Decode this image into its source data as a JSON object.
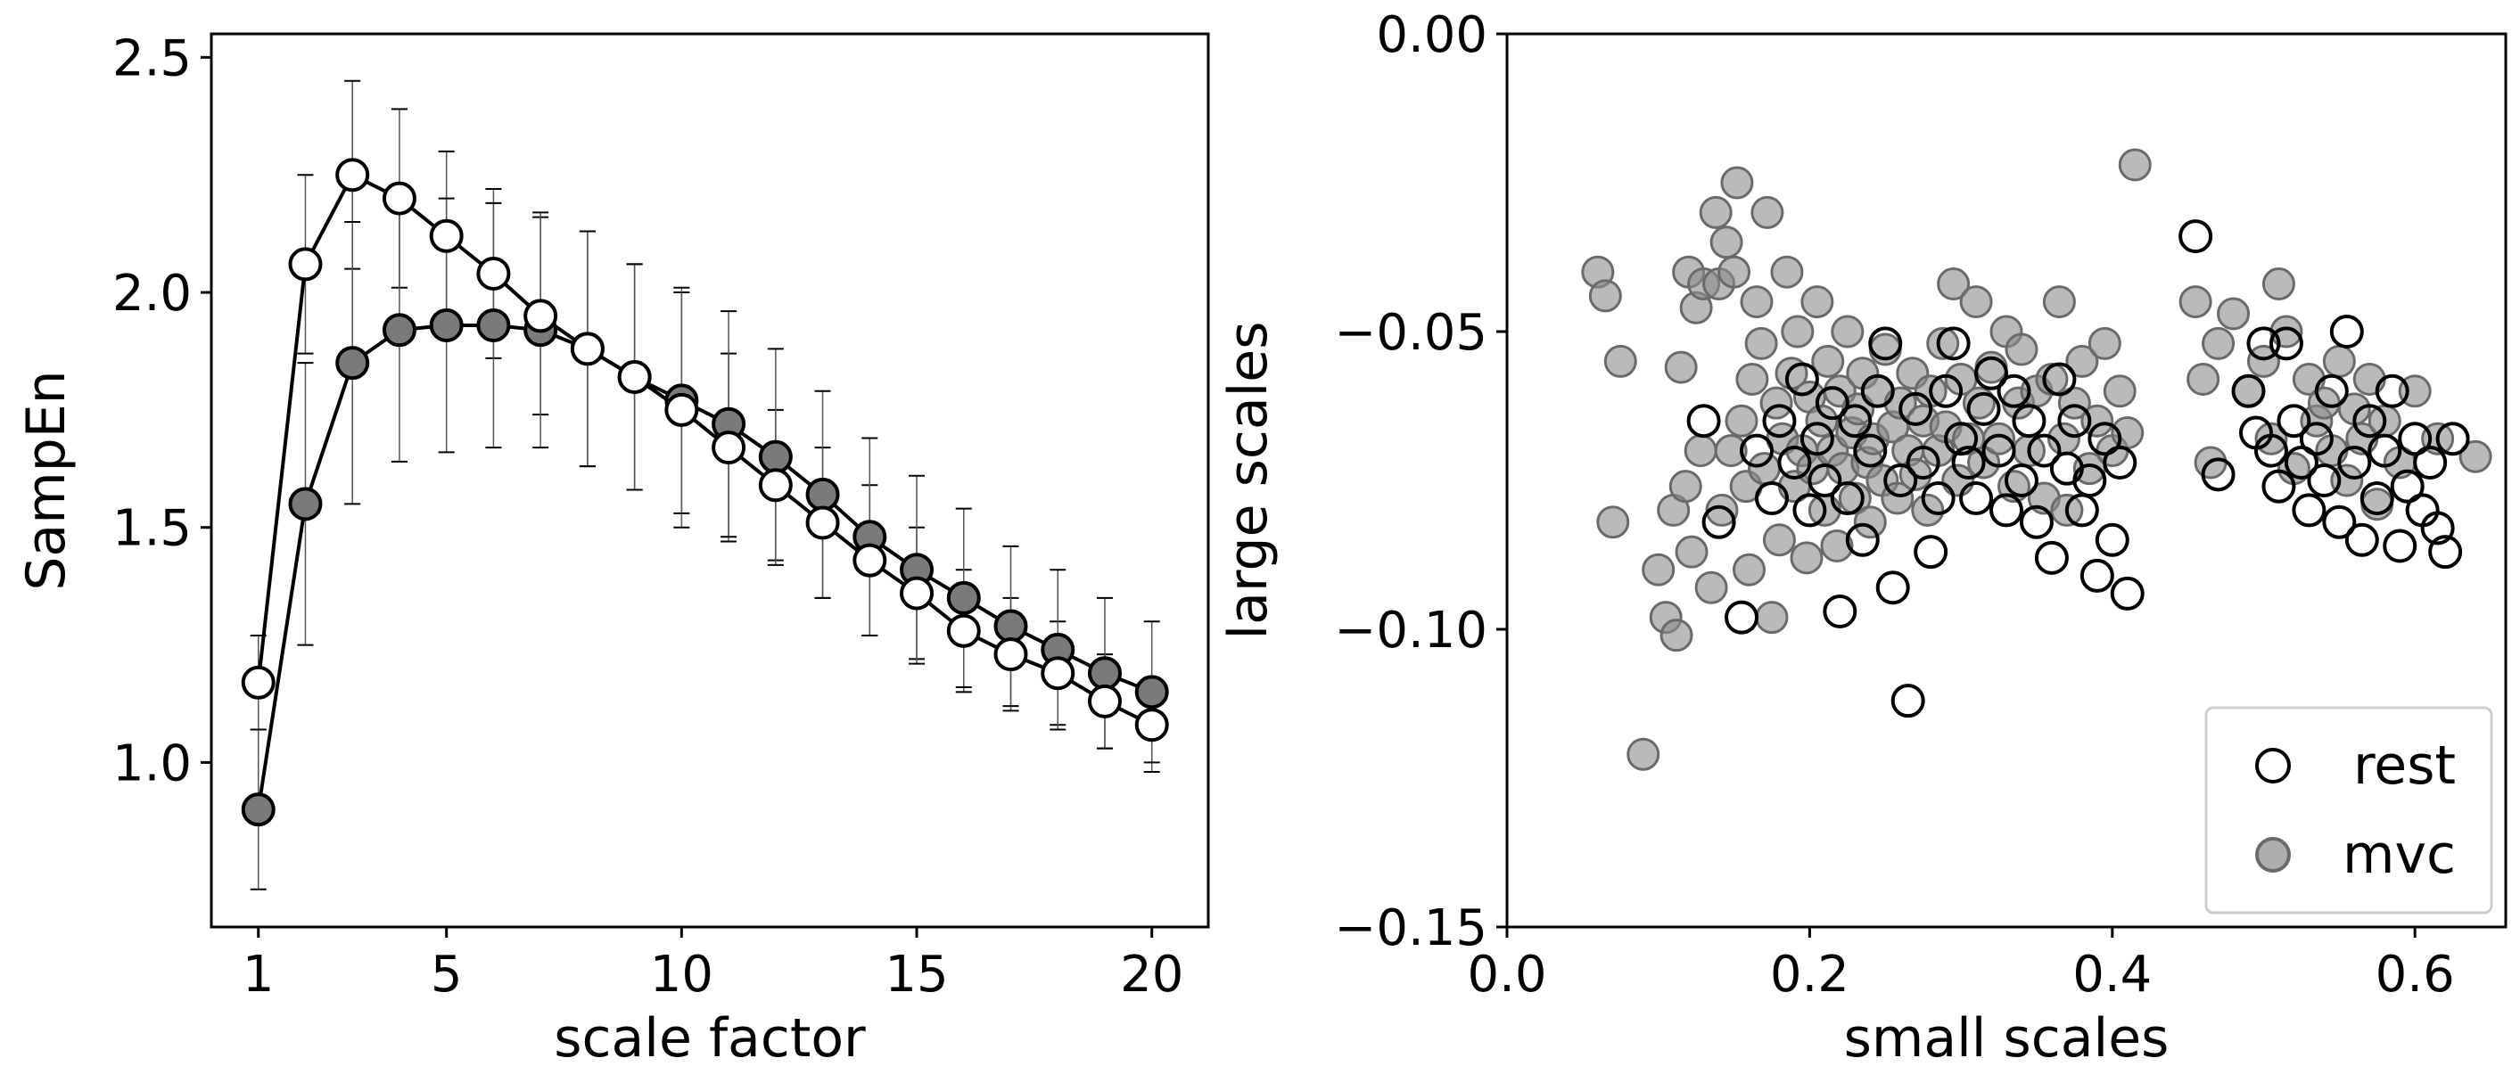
{
  "chart_data": [
    {
      "type": "line",
      "title": "",
      "xlabel": "scale factor",
      "ylabel": "SampEn",
      "xlim": [
        0,
        21.2
      ],
      "ylim": [
        0.65,
        2.55
      ],
      "xticks": [
        1,
        5,
        10,
        15,
        20
      ],
      "xtick_labels": [
        "1",
        "5",
        "10",
        "15",
        "20"
      ],
      "yticks": [
        1.0,
        1.5,
        2.0,
        2.5
      ],
      "ytick_labels": [
        "1.0",
        "1.5",
        "2.0",
        "2.5"
      ],
      "grid": false,
      "x": [
        1,
        2,
        3,
        4,
        5,
        6,
        7,
        8,
        9,
        10,
        11,
        12,
        13,
        14,
        15,
        16,
        17,
        18,
        19,
        20
      ],
      "series": [
        {
          "name": "rest",
          "marker_color": "#ffffff",
          "values": [
            1.17,
            2.06,
            2.25,
            2.2,
            2.12,
            2.04,
            1.95,
            1.88,
            1.82,
            1.75,
            1.67,
            1.59,
            1.51,
            1.43,
            1.36,
            1.28,
            1.23,
            1.19,
            1.13,
            1.08
          ],
          "error": [
            0.1,
            0.19,
            0.2,
            0.19,
            0.18,
            0.18,
            0.21,
            0.25,
            0.24,
            0.25,
            0.2,
            0.16,
            0.16,
            0.16,
            0.14,
            0.13,
            0.12,
            0.11,
            0.1,
            0.1
          ]
        },
        {
          "name": "mvc",
          "marker_color": "#7a7a7a",
          "values": [
            0.9,
            1.55,
            1.85,
            1.92,
            1.93,
            1.93,
            1.92,
            1.88,
            1.82,
            1.77,
            1.72,
            1.65,
            1.57,
            1.48,
            1.41,
            1.35,
            1.29,
            1.24,
            1.19,
            1.15
          ],
          "error": [
            0.17,
            0.3,
            0.3,
            0.28,
            0.27,
            0.26,
            0.25,
            0.25,
            0.24,
            0.24,
            0.24,
            0.23,
            0.22,
            0.21,
            0.2,
            0.19,
            0.17,
            0.17,
            0.16,
            0.15
          ]
        }
      ]
    },
    {
      "type": "scatter",
      "title": "",
      "xlabel": "small scales",
      "ylabel": "large scales",
      "xlim": [
        0.0,
        0.66
      ],
      "ylim": [
        -0.15,
        0.0
      ],
      "xticks": [
        0.0,
        0.2,
        0.4,
        0.6
      ],
      "xtick_labels": [
        "0.0",
        "0.2",
        "0.4",
        "0.6"
      ],
      "yticks": [
        -0.15,
        -0.1,
        -0.05,
        0.0
      ],
      "ytick_labels": [
        "−0.15",
        "−0.10",
        "−0.05",
        "0.00"
      ],
      "grid": false,
      "legend": {
        "placement": "lower-right",
        "entries": [
          {
            "label": "rest",
            "color": "#ffffff"
          },
          {
            "label": "mvc",
            "color": "#8c8c8c"
          }
        ]
      },
      "series": [
        {
          "name": "mvc",
          "marker_color": "#8c8c8c",
          "points": [
            [
              0.06,
              -0.04
            ],
            [
              0.065,
              -0.044
            ],
            [
              0.07,
              -0.082
            ],
            [
              0.075,
              -0.055
            ],
            [
              0.09,
              -0.121
            ],
            [
              0.1,
              -0.09
            ],
            [
              0.105,
              -0.098
            ],
            [
              0.11,
              -0.08
            ],
            [
              0.112,
              -0.101
            ],
            [
              0.115,
              -0.056
            ],
            [
              0.118,
              -0.076
            ],
            [
              0.12,
              -0.04
            ],
            [
              0.122,
              -0.087
            ],
            [
              0.125,
              -0.046
            ],
            [
              0.128,
              -0.07
            ],
            [
              0.13,
              -0.042
            ],
            [
              0.135,
              -0.093
            ],
            [
              0.138,
              -0.03
            ],
            [
              0.14,
              -0.042
            ],
            [
              0.142,
              -0.08
            ],
            [
              0.145,
              -0.035
            ],
            [
              0.148,
              -0.07
            ],
            [
              0.15,
              -0.04
            ],
            [
              0.152,
              -0.025
            ],
            [
              0.155,
              -0.065
            ],
            [
              0.158,
              -0.076
            ],
            [
              0.16,
              -0.09
            ],
            [
              0.162,
              -0.058
            ],
            [
              0.165,
              -0.045
            ],
            [
              0.168,
              -0.052
            ],
            [
              0.17,
              -0.073
            ],
            [
              0.172,
              -0.03
            ],
            [
              0.175,
              -0.098
            ],
            [
              0.178,
              -0.062
            ],
            [
              0.18,
              -0.085
            ],
            [
              0.182,
              -0.068
            ],
            [
              0.185,
              -0.04
            ],
            [
              0.188,
              -0.057
            ],
            [
              0.19,
              -0.076
            ],
            [
              0.192,
              -0.05
            ],
            [
              0.195,
              -0.07
            ],
            [
              0.198,
              -0.088
            ],
            [
              0.2,
              -0.061
            ],
            [
              0.202,
              -0.073
            ],
            [
              0.205,
              -0.045
            ],
            [
              0.208,
              -0.065
            ],
            [
              0.21,
              -0.08
            ],
            [
              0.212,
              -0.055
            ],
            [
              0.215,
              -0.07
            ],
            [
              0.218,
              -0.086
            ],
            [
              0.22,
              -0.06
            ],
            [
              0.222,
              -0.073
            ],
            [
              0.225,
              -0.05
            ],
            [
              0.228,
              -0.067
            ],
            [
              0.23,
              -0.078
            ],
            [
              0.232,
              -0.063
            ],
            [
              0.235,
              -0.057
            ],
            [
              0.238,
              -0.072
            ],
            [
              0.24,
              -0.082
            ],
            [
              0.242,
              -0.068
            ],
            [
              0.245,
              -0.06
            ],
            [
              0.248,
              -0.075
            ],
            [
              0.25,
              -0.053
            ],
            [
              0.255,
              -0.066
            ],
            [
              0.258,
              -0.078
            ],
            [
              0.26,
              -0.062
            ],
            [
              0.265,
              -0.07
            ],
            [
              0.268,
              -0.057
            ],
            [
              0.27,
              -0.074
            ],
            [
              0.275,
              -0.065
            ],
            [
              0.278,
              -0.08
            ],
            [
              0.28,
              -0.06
            ],
            [
              0.285,
              -0.07
            ],
            [
              0.288,
              -0.052
            ],
            [
              0.29,
              -0.066
            ],
            [
              0.295,
              -0.042
            ],
            [
              0.298,
              -0.075
            ],
            [
              0.3,
              -0.058
            ],
            [
              0.305,
              -0.068
            ],
            [
              0.31,
              -0.045
            ],
            [
              0.312,
              -0.062
            ],
            [
              0.315,
              -0.072
            ],
            [
              0.32,
              -0.056
            ],
            [
              0.325,
              -0.068
            ],
            [
              0.33,
              -0.05
            ],
            [
              0.335,
              -0.076
            ],
            [
              0.338,
              -0.062
            ],
            [
              0.34,
              -0.053
            ],
            [
              0.345,
              -0.07
            ],
            [
              0.35,
              -0.06
            ],
            [
              0.355,
              -0.078
            ],
            [
              0.36,
              -0.058
            ],
            [
              0.365,
              -0.045
            ],
            [
              0.368,
              -0.068
            ],
            [
              0.37,
              -0.08
            ],
            [
              0.375,
              -0.062
            ],
            [
              0.38,
              -0.055
            ],
            [
              0.385,
              -0.073
            ],
            [
              0.39,
              -0.065
            ],
            [
              0.395,
              -0.052
            ],
            [
              0.4,
              -0.07
            ],
            [
              0.405,
              -0.06
            ],
            [
              0.41,
              -0.067
            ],
            [
              0.415,
              -0.022
            ],
            [
              0.455,
              -0.045
            ],
            [
              0.46,
              -0.058
            ],
            [
              0.465,
              -0.072
            ],
            [
              0.47,
              -0.052
            ],
            [
              0.48,
              -0.047
            ],
            [
              0.49,
              -0.06
            ],
            [
              0.5,
              -0.055
            ],
            [
              0.505,
              -0.068
            ],
            [
              0.51,
              -0.042
            ],
            [
              0.515,
              -0.05
            ],
            [
              0.52,
              -0.073
            ],
            [
              0.53,
              -0.058
            ],
            [
              0.535,
              -0.065
            ],
            [
              0.54,
              -0.062
            ],
            [
              0.545,
              -0.07
            ],
            [
              0.55,
              -0.055
            ],
            [
              0.555,
              -0.075
            ],
            [
              0.56,
              -0.063
            ],
            [
              0.565,
              -0.068
            ],
            [
              0.57,
              -0.058
            ],
            [
              0.575,
              -0.079
            ],
            [
              0.58,
              -0.065
            ],
            [
              0.59,
              -0.072
            ],
            [
              0.6,
              -0.06
            ],
            [
              0.615,
              -0.068
            ],
            [
              0.64,
              -0.071
            ]
          ]
        },
        {
          "name": "rest",
          "marker_color": "#ffffff",
          "points": [
            [
              0.13,
              -0.065
            ],
            [
              0.14,
              -0.082
            ],
            [
              0.155,
              -0.098
            ],
            [
              0.165,
              -0.07
            ],
            [
              0.175,
              -0.078
            ],
            [
              0.18,
              -0.065
            ],
            [
              0.19,
              -0.072
            ],
            [
              0.195,
              -0.058
            ],
            [
              0.2,
              -0.08
            ],
            [
              0.205,
              -0.068
            ],
            [
              0.21,
              -0.075
            ],
            [
              0.215,
              -0.062
            ],
            [
              0.22,
              -0.097
            ],
            [
              0.225,
              -0.078
            ],
            [
              0.23,
              -0.065
            ],
            [
              0.235,
              -0.085
            ],
            [
              0.24,
              -0.07
            ],
            [
              0.245,
              -0.06
            ],
            [
              0.25,
              -0.052
            ],
            [
              0.255,
              -0.093
            ],
            [
              0.26,
              -0.075
            ],
            [
              0.265,
              -0.112
            ],
            [
              0.27,
              -0.063
            ],
            [
              0.275,
              -0.072
            ],
            [
              0.28,
              -0.087
            ],
            [
              0.285,
              -0.078
            ],
            [
              0.29,
              -0.06
            ],
            [
              0.295,
              -0.052
            ],
            [
              0.3,
              -0.068
            ],
            [
              0.305,
              -0.072
            ],
            [
              0.31,
              -0.078
            ],
            [
              0.315,
              -0.063
            ],
            [
              0.32,
              -0.057
            ],
            [
              0.325,
              -0.07
            ],
            [
              0.33,
              -0.08
            ],
            [
              0.335,
              -0.06
            ],
            [
              0.34,
              -0.075
            ],
            [
              0.345,
              -0.065
            ],
            [
              0.35,
              -0.082
            ],
            [
              0.355,
              -0.07
            ],
            [
              0.36,
              -0.088
            ],
            [
              0.365,
              -0.058
            ],
            [
              0.37,
              -0.073
            ],
            [
              0.375,
              -0.065
            ],
            [
              0.38,
              -0.08
            ],
            [
              0.385,
              -0.075
            ],
            [
              0.39,
              -0.091
            ],
            [
              0.395,
              -0.068
            ],
            [
              0.4,
              -0.085
            ],
            [
              0.405,
              -0.072
            ],
            [
              0.41,
              -0.094
            ],
            [
              0.455,
              -0.034
            ],
            [
              0.47,
              -0.074
            ],
            [
              0.49,
              -0.06
            ],
            [
              0.495,
              -0.067
            ],
            [
              0.5,
              -0.052
            ],
            [
              0.505,
              -0.07
            ],
            [
              0.51,
              -0.076
            ],
            [
              0.515,
              -0.052
            ],
            [
              0.52,
              -0.065
            ],
            [
              0.525,
              -0.072
            ],
            [
              0.53,
              -0.08
            ],
            [
              0.535,
              -0.068
            ],
            [
              0.54,
              -0.075
            ],
            [
              0.545,
              -0.06
            ],
            [
              0.55,
              -0.082
            ],
            [
              0.555,
              -0.05
            ],
            [
              0.56,
              -0.072
            ],
            [
              0.565,
              -0.085
            ],
            [
              0.57,
              -0.065
            ],
            [
              0.575,
              -0.078
            ],
            [
              0.58,
              -0.07
            ],
            [
              0.585,
              -0.06
            ],
            [
              0.59,
              -0.086
            ],
            [
              0.595,
              -0.076
            ],
            [
              0.6,
              -0.068
            ],
            [
              0.605,
              -0.08
            ],
            [
              0.61,
              -0.072
            ],
            [
              0.615,
              -0.083
            ],
            [
              0.62,
              -0.087
            ],
            [
              0.625,
              -0.068
            ]
          ]
        }
      ]
    }
  ]
}
